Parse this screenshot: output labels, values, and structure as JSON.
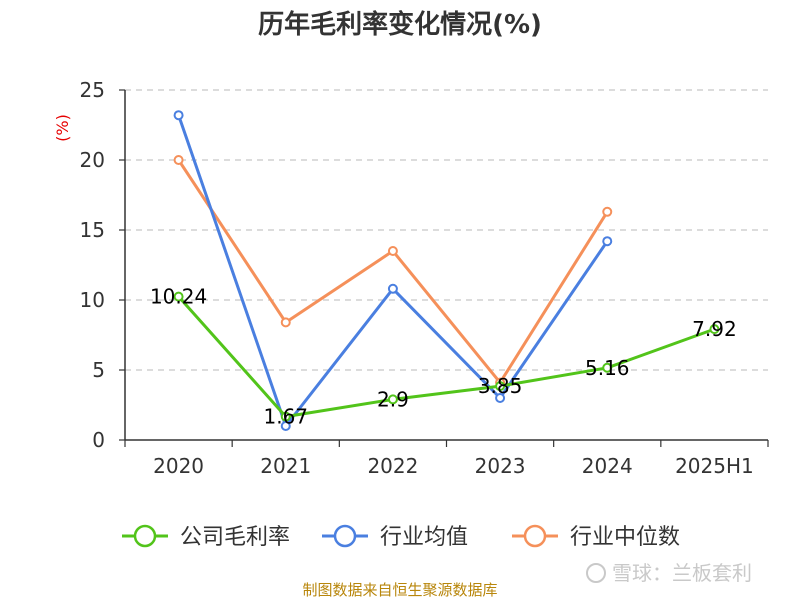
{
  "chart_data": {
    "type": "line",
    "title": "历年毛利率变化情况(%)",
    "ylabel": "(%)",
    "categories": [
      "2020",
      "2021",
      "2022",
      "2023",
      "2024",
      "2025H1"
    ],
    "ylim": [
      0,
      25
    ],
    "yticks": [
      0,
      5,
      10,
      15,
      20,
      25
    ],
    "grid": true,
    "legend_position": "bottom",
    "series": [
      {
        "name": "公司毛利率",
        "color": "#52c41a",
        "values": [
          10.24,
          1.67,
          2.9,
          3.85,
          5.16,
          7.92
        ],
        "data_labels": [
          "10.24",
          "1.67",
          "2.9",
          "3.85",
          "5.16",
          "7.92"
        ]
      },
      {
        "name": "行业均值",
        "color": "#4a7fe0",
        "values": [
          23.2,
          1.0,
          10.8,
          3.0,
          14.2,
          null
        ]
      },
      {
        "name": "行业中位数",
        "color": "#f5905a",
        "values": [
          20.0,
          8.4,
          13.5,
          4.1,
          16.3,
          null
        ]
      }
    ]
  },
  "source_text": "制图数据来自恒生聚源数据库",
  "watermark_text": "雪球：兰板套利"
}
